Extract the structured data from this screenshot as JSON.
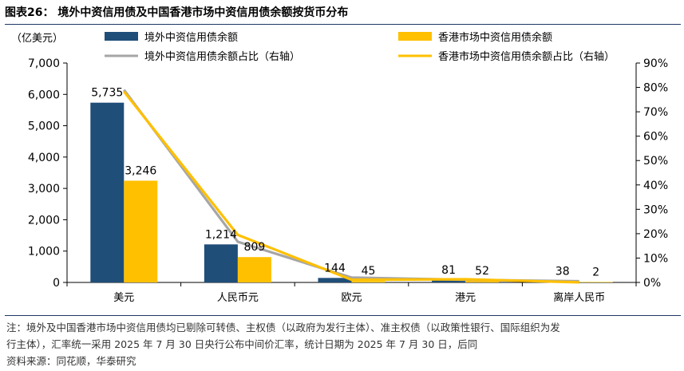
{
  "title": "图表26： 境外中资信用债及中国香港市场中资信用债余额按货币分布",
  "notes": {
    "line1": "注：境外及中国香港市场中资信用债均已剔除可转债、主权债（以政府为发行主体）、准主权债（以政策性银行、国际组织为发",
    "line2": "行主体），汇率统一采用 2025 年 7 月 30 日央行公布中间价汇率，统计日期为 2025 年 7 月 30 日，后同",
    "source": "资料来源：同花顺，华泰研究"
  },
  "chart_data": {
    "type": "bar",
    "categories": [
      "美元",
      "人民币元",
      "欧元",
      "港元",
      "离岸人民币"
    ],
    "unit_label": "（亿美元）",
    "series": [
      {
        "name": "境外中资信用债余额",
        "kind": "bar",
        "axis": "left",
        "color": "#1f4e79",
        "values": [
          5735,
          1214,
          144,
          81,
          38
        ],
        "labels": [
          "5,735",
          "1,214",
          "144",
          "81",
          "38"
        ]
      },
      {
        "name": "香港市场中资信用债余额",
        "kind": "bar",
        "axis": "left",
        "color": "#ffc000",
        "values": [
          3246,
          809,
          45,
          52,
          2
        ],
        "labels": [
          "3,246",
          "809",
          "45",
          "52",
          "2"
        ]
      },
      {
        "name": "境外中资信用债余额占比（右轴）",
        "kind": "line",
        "axis": "right",
        "color": "#a6a6a6",
        "values": [
          79.0,
          16.7,
          2.0,
          1.1,
          0.5
        ]
      },
      {
        "name": "香港市场中资信用债余额占比（右轴）",
        "kind": "line",
        "axis": "right",
        "color": "#ffc000",
        "values": [
          78.3,
          19.5,
          1.1,
          1.3,
          0.05
        ]
      }
    ],
    "y_left": {
      "min": 0,
      "max": 7000,
      "ticks": [
        "0",
        "1,000",
        "2,000",
        "3,000",
        "4,000",
        "5,000",
        "6,000",
        "7,000"
      ]
    },
    "y_right": {
      "min": 0,
      "max": 90,
      "ticks": [
        "0%",
        "10%",
        "20%",
        "30%",
        "40%",
        "50%",
        "60%",
        "70%",
        "80%",
        "90%"
      ]
    },
    "grid": false,
    "legend_position": "top"
  }
}
